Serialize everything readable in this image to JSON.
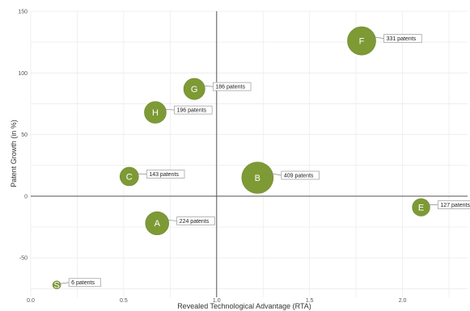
{
  "chart_data": {
    "type": "scatter",
    "title": "",
    "xlabel": "Revealed Technological Advantage (RTA)",
    "ylabel": "Patent Growth (in %)",
    "xlim": [
      0.0,
      2.35
    ],
    "ylim": [
      -82,
      150
    ],
    "x_ticks": [
      "0.0",
      "0.5",
      "1.0",
      "1.5",
      "2.0"
    ],
    "y_ticks": [
      "-50",
      "0",
      "50",
      "100",
      "150"
    ],
    "reference_lines": {
      "x": 1.0,
      "y": 0
    },
    "grid": true,
    "bubble_color": "#7d9a35",
    "points": [
      {
        "label": "F",
        "x": 1.78,
        "y": 126,
        "size": 331,
        "callout": "331 patents"
      },
      {
        "label": "G",
        "x": 0.88,
        "y": 87,
        "size": 186,
        "callout": "186 patents"
      },
      {
        "label": "H",
        "x": 0.67,
        "y": 68,
        "size": 196,
        "callout": "196 patents"
      },
      {
        "label": "C",
        "x": 0.53,
        "y": 16,
        "size": 143,
        "callout": "143 patents"
      },
      {
        "label": "B",
        "x": 1.22,
        "y": 15,
        "size": 409,
        "callout": "409 patents"
      },
      {
        "label": "E",
        "x": 2.1,
        "y": -9,
        "size": 127,
        "callout": "127 patents"
      },
      {
        "label": "A",
        "x": 0.68,
        "y": -22,
        "size": 224,
        "callout": "224 patents"
      },
      {
        "label": "S",
        "x": 0.14,
        "y": -72,
        "size": 6,
        "callout": "6 patents"
      }
    ]
  }
}
